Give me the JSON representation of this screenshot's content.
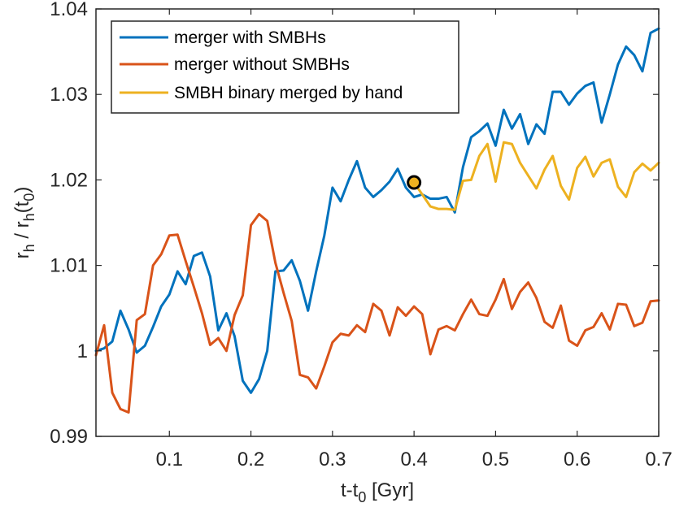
{
  "chart_data": {
    "type": "line",
    "title": "",
    "xlabel": "t-t_0 [Gyr]",
    "ylabel": "r_h / r_h(t_0)",
    "xlim": [
      0.01,
      0.7
    ],
    "ylim": [
      0.99,
      1.04
    ],
    "xticks": [
      0.1,
      0.2,
      0.3,
      0.4,
      0.5,
      0.6,
      0.7
    ],
    "xtick_labels": [
      "0.1",
      "0.2",
      "0.3",
      "0.4",
      "0.5",
      "0.6",
      "0.7"
    ],
    "yticks": [
      0.99,
      1.0,
      1.01,
      1.02,
      1.03,
      1.04
    ],
    "ytick_labels": [
      "0.99",
      "1",
      "1.01",
      "1.02",
      "1.03",
      "1.04"
    ],
    "grid": false,
    "legend_position": "top-left",
    "series": [
      {
        "name": "merger with SMBHs",
        "color": "#0072BD",
        "x": [
          0.01,
          0.02,
          0.03,
          0.04,
          0.05,
          0.06,
          0.07,
          0.08,
          0.09,
          0.1,
          0.11,
          0.12,
          0.13,
          0.14,
          0.15,
          0.16,
          0.17,
          0.18,
          0.19,
          0.2,
          0.21,
          0.22,
          0.23,
          0.24,
          0.25,
          0.26,
          0.27,
          0.28,
          0.29,
          0.3,
          0.31,
          0.32,
          0.33,
          0.34,
          0.35,
          0.36,
          0.37,
          0.38,
          0.39,
          0.4,
          0.41,
          0.42,
          0.43,
          0.44,
          0.45,
          0.46,
          0.47,
          0.48,
          0.49,
          0.5,
          0.51,
          0.52,
          0.53,
          0.54,
          0.55,
          0.56,
          0.57,
          0.58,
          0.59,
          0.6,
          0.61,
          0.62,
          0.63,
          0.64,
          0.65,
          0.66,
          0.67,
          0.68,
          0.69,
          0.7
        ],
        "values": [
          1.0,
          1.0003,
          1.0011,
          1.0047,
          1.0025,
          0.9998,
          1.0006,
          1.0028,
          1.0052,
          1.0066,
          1.0093,
          1.0078,
          1.0111,
          1.0115,
          1.0087,
          1.0024,
          1.0044,
          1.0017,
          0.9965,
          0.9951,
          0.9967,
          1.0,
          1.0093,
          1.0094,
          1.0106,
          1.0082,
          1.0047,
          1.0093,
          1.0135,
          1.0191,
          1.0175,
          1.02,
          1.0222,
          1.0191,
          1.018,
          1.0188,
          1.0198,
          1.0213,
          1.0191,
          1.018,
          1.0183,
          1.0178,
          1.0178,
          1.018,
          1.0162,
          1.0215,
          1.025,
          1.0257,
          1.0266,
          1.024,
          1.0282,
          1.026,
          1.0277,
          1.0242,
          1.0265,
          1.0254,
          1.0303,
          1.0303,
          1.0288,
          1.0301,
          1.031,
          1.0314,
          1.0267,
          1.03,
          1.0335,
          1.0356,
          1.0346,
          1.0327,
          1.0372,
          1.0377
        ]
      },
      {
        "name": "merger without SMBHs",
        "color": "#D95319",
        "x": [
          0.01,
          0.02,
          0.03,
          0.04,
          0.05,
          0.06,
          0.07,
          0.08,
          0.09,
          0.1,
          0.11,
          0.12,
          0.13,
          0.14,
          0.15,
          0.16,
          0.17,
          0.18,
          0.19,
          0.2,
          0.21,
          0.22,
          0.23,
          0.24,
          0.25,
          0.26,
          0.27,
          0.28,
          0.29,
          0.3,
          0.31,
          0.32,
          0.33,
          0.34,
          0.35,
          0.36,
          0.37,
          0.38,
          0.39,
          0.4,
          0.41,
          0.42,
          0.43,
          0.44,
          0.45,
          0.46,
          0.47,
          0.48,
          0.49,
          0.5,
          0.51,
          0.52,
          0.53,
          0.54,
          0.55,
          0.56,
          0.57,
          0.58,
          0.59,
          0.6,
          0.61,
          0.62,
          0.63,
          0.64,
          0.65,
          0.66,
          0.67,
          0.68,
          0.69,
          0.7
        ],
        "values": [
          0.9995,
          1.003,
          0.9951,
          0.9932,
          0.9928,
          1.0036,
          1.0043,
          1.01,
          1.0113,
          1.0135,
          1.0136,
          1.0105,
          1.0075,
          1.0044,
          1.0007,
          1.0015,
          1.0,
          1.0042,
          1.0065,
          1.0147,
          1.016,
          1.0152,
          1.0103,
          1.0068,
          1.0035,
          0.9972,
          0.9969,
          0.9956,
          0.9982,
          1.001,
          1.002,
          1.0018,
          1.003,
          1.0022,
          1.0055,
          1.0047,
          1.0018,
          1.0051,
          1.0041,
          1.0052,
          1.0043,
          0.9996,
          1.0025,
          1.0029,
          1.0024,
          1.0043,
          1.006,
          1.0043,
          1.0041,
          1.006,
          1.0084,
          1.0049,
          1.0069,
          1.008,
          1.0062,
          1.0034,
          1.0027,
          1.0053,
          1.0012,
          1.0006,
          1.0024,
          1.0028,
          1.0044,
          1.0025,
          1.0055,
          1.0054,
          1.0029,
          1.0033,
          1.0058,
          1.0059
        ]
      },
      {
        "name": "SMBH binary merged by hand",
        "color": "#EDB120",
        "x": [
          0.4,
          0.41,
          0.42,
          0.43,
          0.44,
          0.45,
          0.46,
          0.47,
          0.48,
          0.49,
          0.5,
          0.51,
          0.52,
          0.53,
          0.54,
          0.55,
          0.56,
          0.57,
          0.58,
          0.59,
          0.6,
          0.61,
          0.62,
          0.63,
          0.64,
          0.65,
          0.66,
          0.67,
          0.68,
          0.69,
          0.7
        ],
        "values": [
          1.0197,
          1.0183,
          1.0169,
          1.0166,
          1.0166,
          1.0165,
          1.0199,
          1.02,
          1.0228,
          1.0242,
          1.0198,
          1.0244,
          1.0242,
          1.022,
          1.0205,
          1.019,
          1.0212,
          1.0228,
          1.0193,
          1.0177,
          1.0214,
          1.0227,
          1.0204,
          1.022,
          1.0224,
          1.0192,
          1.018,
          1.0209,
          1.0219,
          1.0211,
          1.022
        ]
      }
    ],
    "marker": {
      "x": 0.4,
      "y": 1.0197,
      "color": "#EDB120",
      "edge_color": "#000000"
    }
  }
}
